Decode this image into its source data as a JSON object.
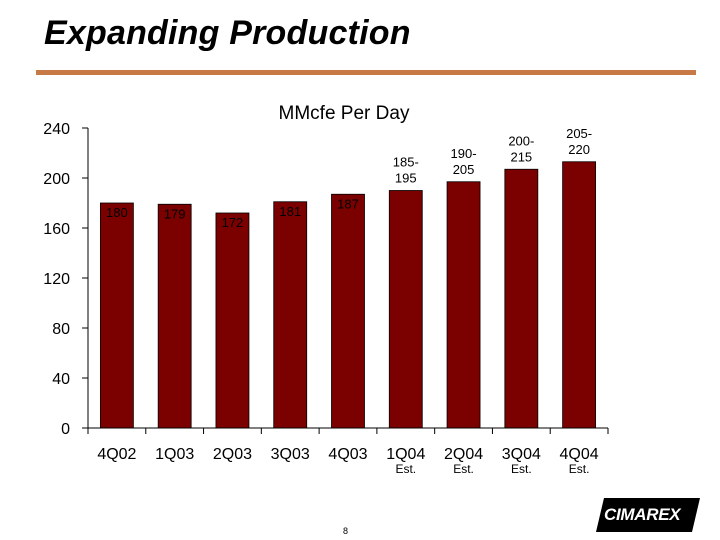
{
  "slide": {
    "title": "Expanding Production",
    "page_number": "8",
    "logo_text": "CIMAREX"
  },
  "colors": {
    "bar": "#7b0000",
    "rule": "#c87a46",
    "axis": "#000000"
  },
  "chart_data": {
    "type": "bar",
    "title": "MMcfe Per Day",
    "xlabel": "",
    "ylabel": "",
    "ylim": [
      0,
      240
    ],
    "yticks": [
      0,
      40,
      80,
      120,
      160,
      200,
      240
    ],
    "categories": [
      "4Q02",
      "1Q03",
      "2Q03",
      "3Q03",
      "4Q03",
      "1Q04",
      "2Q04",
      "3Q04",
      "4Q04"
    ],
    "sublabels": [
      "",
      "",
      "",
      "",
      "",
      "Est.",
      "Est.",
      "Est.",
      "Est."
    ],
    "values": [
      180,
      179,
      172,
      181,
      187,
      190,
      197,
      207,
      213
    ],
    "data_labels": [
      [
        "180"
      ],
      [
        "179"
      ],
      [
        "172"
      ],
      [
        "181"
      ],
      [
        "187"
      ],
      [
        "185-",
        "195"
      ],
      [
        "190-",
        "205"
      ],
      [
        "200-",
        "215"
      ],
      [
        "205-",
        "220"
      ]
    ],
    "grid": false,
    "legend": "none"
  }
}
